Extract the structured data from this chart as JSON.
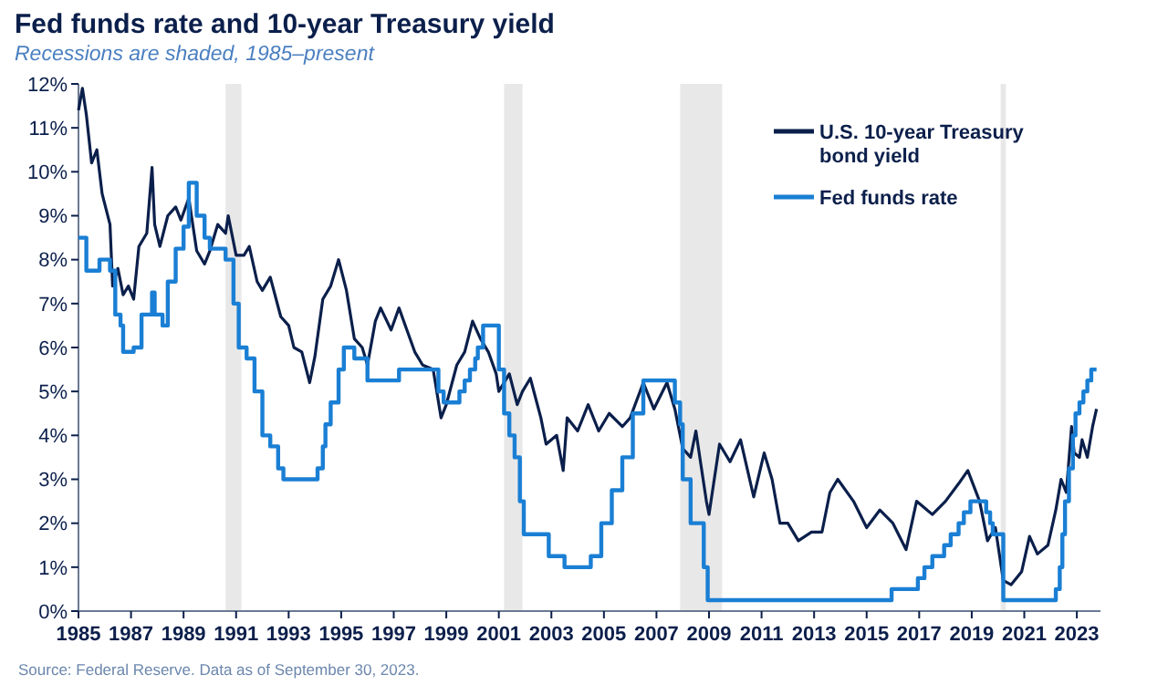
{
  "chart_data": {
    "type": "line",
    "title": "Fed funds rate and 10-year Treasury yield",
    "subtitle": "Recessions are shaded, 1985–present",
    "annotations": [
      "Source: Federal Reserve. Data as of September 30, 2023."
    ],
    "xlim": [
      1985,
      2023.9
    ],
    "xticks": [
      1985,
      1987,
      1989,
      1991,
      1993,
      1995,
      1997,
      1999,
      2001,
      2003,
      2005,
      2007,
      2009,
      2011,
      2013,
      2015,
      2017,
      2019,
      2021,
      2023
    ],
    "ylim": [
      0,
      12
    ],
    "yticks": [
      {
        "value": 0,
        "label": "0%"
      },
      {
        "value": 1,
        "label": "1%"
      },
      {
        "value": 2,
        "label": "2%"
      },
      {
        "value": 3,
        "label": "3%"
      },
      {
        "value": 4,
        "label": "4%"
      },
      {
        "value": 5,
        "label": "5%"
      },
      {
        "value": 6,
        "label": "6%"
      },
      {
        "value": 7,
        "label": "7%"
      },
      {
        "value": 8,
        "label": "8%"
      },
      {
        "value": 9,
        "label": "9%"
      },
      {
        "value": 10,
        "label": "10%"
      },
      {
        "value": 11,
        "label": "11%"
      },
      {
        "value": 12,
        "label": "12%"
      }
    ],
    "grid": false,
    "legend": "top right",
    "bands": [
      {
        "axis": "x",
        "from": 1990.6,
        "to": 1991.2,
        "color": "#e8e8e8"
      },
      {
        "axis": "x",
        "from": 2001.2,
        "to": 2001.9,
        "color": "#e8e8e8"
      },
      {
        "axis": "x",
        "from": 2007.9,
        "to": 2009.5,
        "color": "#e8e8e8"
      },
      {
        "axis": "x",
        "from": 2020.1,
        "to": 2020.3,
        "color": "#e8e8e8"
      }
    ],
    "series": [
      {
        "name": "U.S. 10-year Treasury bond yield",
        "color": "#0b1f4b",
        "x": [
          1985.0,
          1985.15,
          1985.3,
          1985.5,
          1985.7,
          1985.9,
          1986.2,
          1986.3,
          1986.5,
          1986.7,
          1986.9,
          1987.1,
          1987.3,
          1987.6,
          1987.8,
          1987.9,
          1988.1,
          1988.4,
          1988.7,
          1988.9,
          1989.2,
          1989.5,
          1989.8,
          1990.0,
          1990.3,
          1990.6,
          1990.7,
          1991.0,
          1991.3,
          1991.5,
          1991.8,
          1992.0,
          1992.3,
          1992.7,
          1993.0,
          1993.2,
          1993.5,
          1993.8,
          1994.0,
          1994.3,
          1994.6,
          1994.9,
          1995.2,
          1995.5,
          1995.8,
          1996.0,
          1996.3,
          1996.5,
          1996.9,
          1997.2,
          1997.5,
          1997.8,
          1998.1,
          1998.5,
          1998.8,
          1999.0,
          1999.4,
          1999.7,
          2000.0,
          2000.3,
          2000.6,
          2000.9,
          2001.0,
          2001.4,
          2001.7,
          2001.9,
          2002.2,
          2002.6,
          2002.8,
          2003.2,
          2003.45,
          2003.6,
          2004.0,
          2004.4,
          2004.8,
          2005.2,
          2005.7,
          2006.0,
          2006.5,
          2006.9,
          2007.4,
          2007.7,
          2008.0,
          2008.3,
          2008.5,
          2008.9,
          2009.0,
          2009.4,
          2009.8,
          2010.2,
          2010.7,
          2011.1,
          2011.4,
          2011.7,
          2012.0,
          2012.4,
          2012.9,
          2013.3,
          2013.6,
          2013.9,
          2014.5,
          2015.0,
          2015.5,
          2016.0,
          2016.5,
          2016.9,
          2017.5,
          2018.0,
          2018.5,
          2018.85,
          2019.3,
          2019.6,
          2019.9,
          2020.2,
          2020.5,
          2020.9,
          2021.2,
          2021.5,
          2021.9,
          2022.2,
          2022.4,
          2022.6,
          2022.8,
          2022.9,
          2023.1,
          2023.2,
          2023.4,
          2023.6,
          2023.75
        ],
        "values": [
          11.4,
          11.9,
          11.3,
          10.2,
          10.5,
          9.5,
          8.8,
          7.4,
          7.8,
          7.2,
          7.4,
          7.1,
          8.3,
          8.6,
          10.1,
          8.8,
          8.3,
          9.0,
          9.2,
          8.9,
          9.4,
          8.2,
          7.9,
          8.2,
          8.8,
          8.6,
          9.0,
          8.1,
          8.1,
          8.3,
          7.5,
          7.3,
          7.6,
          6.7,
          6.5,
          6.0,
          5.9,
          5.2,
          5.8,
          7.1,
          7.4,
          8.0,
          7.3,
          6.2,
          6.0,
          5.6,
          6.6,
          6.9,
          6.4,
          6.9,
          6.4,
          5.9,
          5.6,
          5.5,
          4.4,
          4.7,
          5.6,
          5.9,
          6.6,
          6.2,
          5.9,
          5.4,
          5.0,
          5.4,
          4.7,
          5.0,
          5.3,
          4.4,
          3.8,
          4.0,
          3.2,
          4.4,
          4.1,
          4.7,
          4.1,
          4.5,
          4.2,
          4.4,
          5.2,
          4.6,
          5.2,
          4.6,
          3.7,
          3.5,
          4.1,
          2.5,
          2.2,
          3.8,
          3.4,
          3.9,
          2.6,
          3.6,
          3.0,
          2.0,
          2.0,
          1.6,
          1.8,
          1.8,
          2.7,
          3.0,
          2.5,
          1.9,
          2.3,
          2.0,
          1.4,
          2.5,
          2.2,
          2.5,
          2.9,
          3.2,
          2.5,
          1.6,
          1.9,
          0.7,
          0.6,
          0.9,
          1.7,
          1.3,
          1.5,
          2.3,
          3.0,
          2.7,
          4.2,
          3.6,
          3.5,
          3.9,
          3.5,
          4.2,
          4.6
        ]
      },
      {
        "name": "Fed funds rate",
        "type": "step",
        "color": "#1a7fd4",
        "x": [
          1985.0,
          1985.3,
          1985.8,
          1986.2,
          1986.4,
          1986.6,
          1986.7,
          1987.1,
          1987.4,
          1987.8,
          1987.9,
          1988.2,
          1988.4,
          1988.7,
          1989.0,
          1989.2,
          1989.5,
          1989.8,
          1990.0,
          1990.6,
          1990.9,
          1991.1,
          1991.4,
          1991.7,
          1992.0,
          1992.3,
          1992.6,
          1992.8,
          1994.1,
          1994.3,
          1994.4,
          1994.6,
          1994.9,
          1995.1,
          1995.5,
          1996.0,
          1997.2,
          1998.7,
          1998.9,
          1999.5,
          1999.7,
          1999.9,
          2000.1,
          2000.2,
          2000.4,
          2001.0,
          2001.2,
          2001.4,
          2001.6,
          2001.8,
          2001.95,
          2002.9,
          2003.5,
          2004.5,
          2004.9,
          2005.3,
          2005.7,
          2006.1,
          2006.5,
          2007.7,
          2007.9,
          2008.0,
          2008.3,
          2008.8,
          2008.95,
          2015.95,
          2016.95,
          2017.2,
          2017.5,
          2017.95,
          2018.2,
          2018.5,
          2018.7,
          2018.95,
          2019.55,
          2019.7,
          2019.8,
          2020.2,
          2022.2,
          2022.35,
          2022.45,
          2022.55,
          2022.7,
          2022.85,
          2022.95,
          2023.1,
          2023.25,
          2023.4,
          2023.55,
          2023.75
        ],
        "values": [
          8.5,
          7.75,
          8.0,
          7.75,
          6.75,
          6.5,
          5.9,
          6.0,
          6.75,
          7.25,
          6.75,
          6.5,
          7.5,
          8.25,
          8.75,
          9.75,
          9.0,
          8.5,
          8.25,
          8.0,
          7.0,
          6.0,
          5.75,
          5.0,
          4.0,
          3.75,
          3.25,
          3.0,
          3.25,
          3.75,
          4.25,
          4.75,
          5.5,
          6.0,
          5.75,
          5.25,
          5.5,
          5.0,
          4.75,
          5.0,
          5.25,
          5.5,
          5.75,
          6.0,
          6.5,
          5.5,
          4.5,
          4.0,
          3.5,
          2.5,
          1.75,
          1.25,
          1.0,
          1.25,
          2.0,
          2.75,
          3.5,
          4.5,
          5.25,
          4.75,
          4.25,
          3.0,
          2.0,
          1.0,
          0.25,
          0.5,
          0.75,
          1.0,
          1.25,
          1.5,
          1.75,
          2.0,
          2.25,
          2.5,
          2.25,
          2.0,
          1.75,
          0.25,
          0.5,
          1.0,
          1.75,
          2.5,
          3.25,
          4.0,
          4.5,
          4.75,
          5.0,
          5.25,
          5.5,
          5.5
        ]
      }
    ]
  }
}
